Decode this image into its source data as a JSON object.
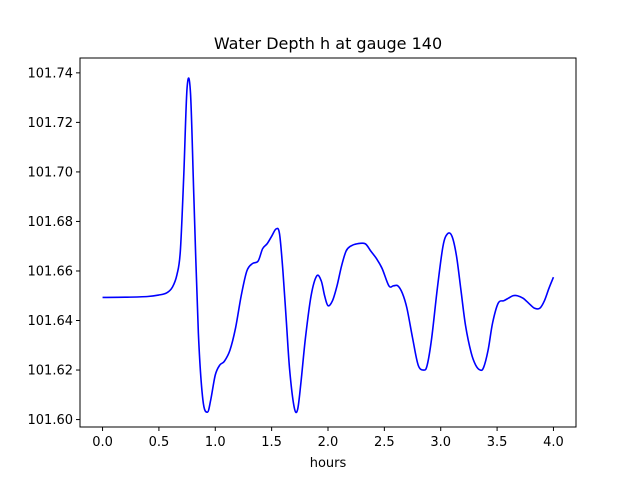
{
  "chart_data": {
    "type": "line",
    "title": "Water Depth h at gauge 140",
    "xlabel": "hours",
    "ylabel": "",
    "xlim": [
      -0.2,
      4.2
    ],
    "ylim": [
      101.597,
      101.746
    ],
    "xticks": [
      0.0,
      0.5,
      1.0,
      1.5,
      2.0,
      2.5,
      3.0,
      3.5,
      4.0
    ],
    "xtick_labels": [
      "0.0",
      "0.5",
      "1.0",
      "1.5",
      "2.0",
      "2.5",
      "3.0",
      "3.5",
      "4.0"
    ],
    "yticks": [
      101.6,
      101.62,
      101.64,
      101.66,
      101.68,
      101.7,
      101.72,
      101.74
    ],
    "ytick_labels": [
      "101.60",
      "101.62",
      "101.64",
      "101.66",
      "101.68",
      "101.70",
      "101.72",
      "101.74"
    ],
    "grid": false,
    "series": [
      {
        "color": "#0000ff",
        "x": [
          0.0,
          0.2,
          0.4,
          0.5,
          0.57,
          0.62,
          0.66,
          0.69,
          0.72,
          0.75,
          0.78,
          0.81,
          0.85,
          0.89,
          0.93,
          0.96,
          1.0,
          1.04,
          1.08,
          1.13,
          1.18,
          1.23,
          1.28,
          1.33,
          1.38,
          1.42,
          1.46,
          1.5,
          1.54,
          1.57,
          1.6,
          1.63,
          1.66,
          1.7,
          1.73,
          1.76,
          1.8,
          1.85,
          1.9,
          1.94,
          1.97,
          2.0,
          2.04,
          2.08,
          2.12,
          2.16,
          2.2,
          2.26,
          2.33,
          2.38,
          2.43,
          2.48,
          2.54,
          2.58,
          2.62,
          2.66,
          2.7,
          2.75,
          2.8,
          2.85,
          2.88,
          2.92,
          2.97,
          3.02,
          3.06,
          3.1,
          3.14,
          3.18,
          3.22,
          3.27,
          3.31,
          3.35,
          3.38,
          3.42,
          3.46,
          3.51,
          3.56,
          3.6,
          3.64,
          3.68,
          3.73,
          3.78,
          3.83,
          3.88,
          3.92,
          3.96,
          4.0
        ],
        "y": [
          101.6493,
          101.6494,
          101.6497,
          101.6503,
          101.6512,
          101.6535,
          101.6585,
          101.668,
          101.698,
          101.734,
          101.732,
          101.69,
          101.635,
          101.608,
          101.603,
          101.608,
          101.618,
          101.622,
          101.6235,
          101.628,
          101.637,
          101.65,
          101.66,
          101.663,
          101.664,
          101.669,
          101.671,
          101.674,
          101.677,
          101.675,
          101.66,
          101.64,
          101.62,
          101.605,
          101.604,
          101.615,
          101.633,
          101.65,
          101.658,
          101.656,
          101.65,
          101.646,
          101.648,
          101.654,
          101.662,
          101.668,
          101.67,
          101.671,
          101.671,
          101.668,
          101.665,
          101.661,
          101.654,
          101.654,
          101.654,
          101.651,
          101.645,
          101.633,
          101.622,
          101.62,
          101.622,
          101.633,
          101.653,
          101.67,
          101.675,
          101.674,
          101.666,
          101.652,
          101.638,
          101.627,
          101.622,
          101.62,
          101.621,
          101.628,
          101.639,
          101.647,
          101.648,
          101.649,
          101.65,
          101.65,
          101.649,
          101.647,
          101.645,
          101.645,
          101.648,
          101.653,
          101.6575
        ]
      }
    ]
  }
}
